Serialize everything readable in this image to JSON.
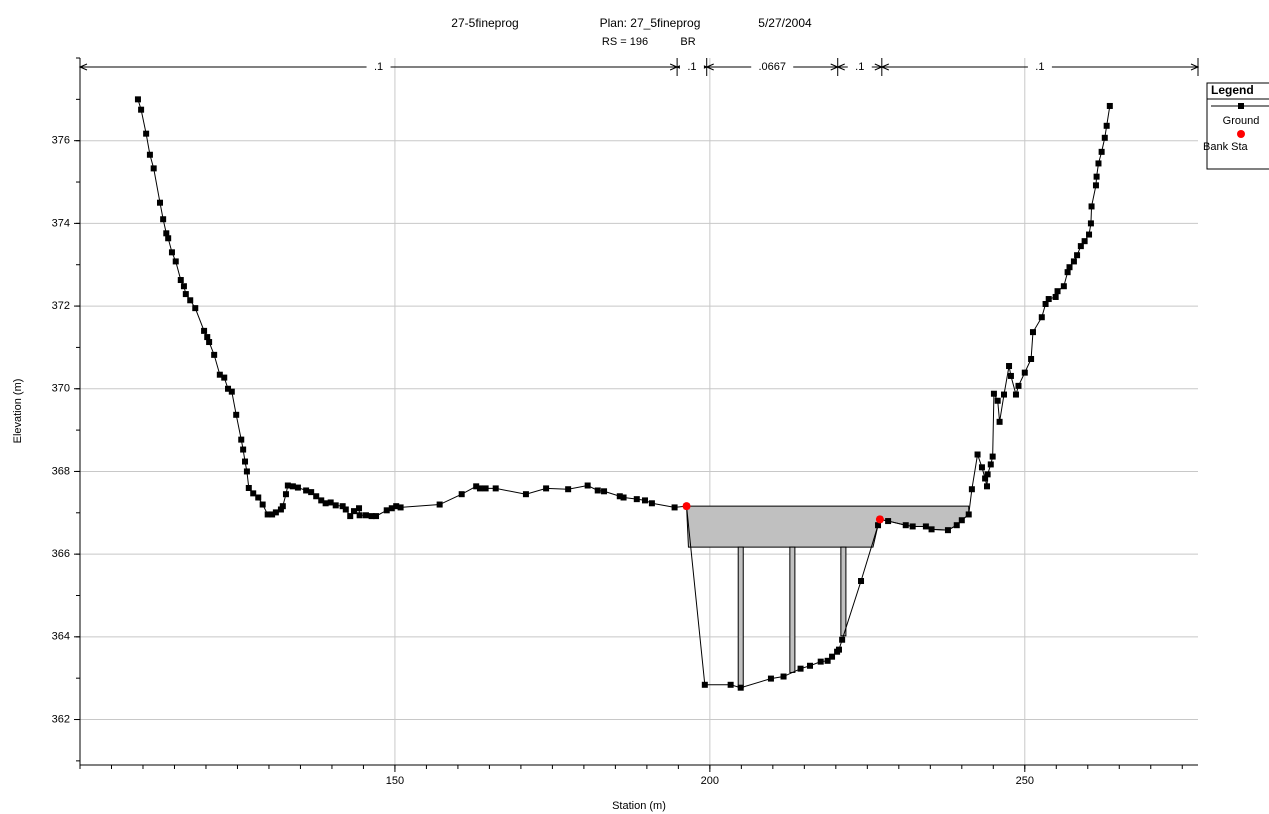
{
  "chart_data": {
    "type": "cross-section",
    "title": "27-5fineprog",
    "plan": "Plan: 27_5fineprog",
    "date": "5/27/2004",
    "subtitle": "RS = 196",
    "subtitle_tag": "BR",
    "x_label": "Station (m)",
    "y_label": "Elevation (m)",
    "xlim": [
      100,
      277.5
    ],
    "ylim": [
      360.9,
      378
    ],
    "xticks": [
      150,
      200,
      250
    ],
    "yticks": [
      362,
      364,
      366,
      368,
      370,
      372,
      374,
      376
    ],
    "x_minor_step": 5,
    "y_minor_step": 1,
    "grid": true,
    "legend_title": "Legend",
    "legend": "top-right",
    "mannings_n": {
      "breaks": [
        100,
        194.8,
        199.5,
        220.3,
        227.3,
        277.5
      ],
      "labels": [
        ".1",
        ".1",
        ".0667",
        ".1",
        ".1"
      ]
    },
    "bridge": {
      "high_chord": 367.16,
      "low_chord": 366.17,
      "deck_x": [
        196.3,
        241.1
      ],
      "low_chord_x": [
        196.6,
        225.9
      ],
      "deck_color": "#c0c0c0",
      "piers": [
        {
          "station": 204.9,
          "width": 0.8
        },
        {
          "station": 213.1,
          "width": 0.8
        },
        {
          "station": 221.2,
          "width": 0.8
        }
      ]
    },
    "series": [
      {
        "name": "Ground",
        "color": "#000000",
        "x": [
          109.2,
          109.7,
          110.5,
          111.1,
          111.7,
          112.7,
          113.2,
          113.7,
          114.0,
          114.6,
          115.2,
          116.0,
          116.5,
          116.8,
          117.5,
          118.3,
          119.7,
          120.2,
          120.5,
          121.3,
          122.2,
          122.9,
          123.5,
          124.1,
          124.8,
          125.6,
          125.9,
          126.2,
          126.5,
          126.8,
          127.5,
          128.3,
          129.0,
          129.8,
          130.5,
          131.1,
          131.9,
          132.2,
          132.7,
          133.0,
          133.8,
          134.6,
          135.9,
          136.7,
          137.5,
          138.3,
          139.0,
          139.8,
          140.6,
          141.7,
          142.2,
          142.9,
          143.5,
          144.3,
          144.4,
          145.4,
          146.3,
          147.0,
          148.7,
          149.5,
          150.2,
          150.9,
          157.1,
          160.6,
          162.9,
          163.5,
          164.4,
          166.0,
          170.8,
          174.0,
          177.5,
          180.6,
          182.2,
          183.2,
          185.7,
          186.3,
          188.4,
          189.7,
          190.8,
          194.4,
          196.3,
          199.2,
          203.3,
          204.9,
          209.7,
          211.7,
          214.4,
          215.9,
          217.6,
          218.7,
          219.4,
          220.2,
          220.5,
          221.0,
          224.0,
          226.7,
          227.0,
          228.3,
          231.1,
          232.2,
          234.3,
          235.2,
          237.8,
          239.2,
          240.0,
          241.1,
          241.6,
          242.5,
          243.2,
          243.7,
          244.0,
          244.1,
          244.6,
          244.9,
          245.1,
          245.7,
          246.0,
          246.7,
          247.5,
          247.8,
          248.6,
          249.0,
          250.0,
          251.0,
          251.3,
          252.7,
          253.3,
          253.8,
          254.9,
          255.2,
          256.2,
          256.8,
          257.1,
          257.8,
          258.3,
          258.9,
          259.5,
          260.2,
          260.5,
          260.6,
          261.3,
          261.4,
          261.7,
          262.2,
          262.7,
          263.0,
          263.5
        ],
        "values": [
          377.0,
          376.75,
          376.17,
          375.66,
          375.33,
          374.5,
          374.1,
          373.76,
          373.64,
          373.3,
          373.08,
          372.63,
          372.48,
          372.29,
          372.14,
          371.95,
          371.4,
          371.25,
          371.13,
          370.82,
          370.34,
          370.27,
          370.0,
          369.93,
          369.37,
          368.77,
          368.53,
          368.24,
          368.0,
          367.6,
          367.47,
          367.37,
          367.2,
          366.96,
          366.96,
          367.01,
          367.08,
          367.16,
          367.45,
          367.66,
          367.64,
          367.61,
          367.54,
          367.5,
          367.4,
          367.3,
          367.23,
          367.25,
          367.18,
          367.16,
          367.08,
          366.92,
          367.04,
          367.11,
          366.94,
          366.94,
          366.92,
          366.92,
          367.06,
          367.11,
          367.16,
          367.13,
          367.2,
          367.45,
          367.64,
          367.59,
          367.59,
          367.59,
          367.45,
          367.59,
          367.57,
          367.66,
          367.54,
          367.52,
          367.4,
          367.37,
          367.33,
          367.3,
          367.23,
          367.13,
          367.16,
          362.84,
          362.84,
          362.77,
          362.99,
          363.04,
          363.23,
          363.3,
          363.4,
          363.42,
          363.52,
          363.64,
          363.69,
          363.93,
          365.35,
          366.7,
          366.84,
          366.8,
          366.7,
          366.67,
          366.67,
          366.6,
          366.58,
          366.7,
          366.82,
          366.96,
          367.57,
          368.41,
          368.1,
          367.83,
          367.64,
          367.93,
          368.17,
          368.36,
          369.88,
          369.71,
          369.2,
          369.86,
          370.55,
          370.31,
          369.86,
          370.07,
          370.39,
          370.72,
          371.37,
          371.73,
          372.05,
          372.17,
          372.22,
          372.36,
          372.48,
          372.82,
          372.94,
          373.08,
          373.23,
          373.45,
          373.57,
          373.73,
          374.0,
          374.41,
          374.92,
          375.13,
          375.45,
          375.73,
          376.07,
          376.36,
          376.84
        ]
      },
      {
        "name": "Bank Sta",
        "color": "#ff0000",
        "x": [
          196.3,
          227.0
        ],
        "values": [
          367.16,
          366.84
        ]
      }
    ]
  }
}
